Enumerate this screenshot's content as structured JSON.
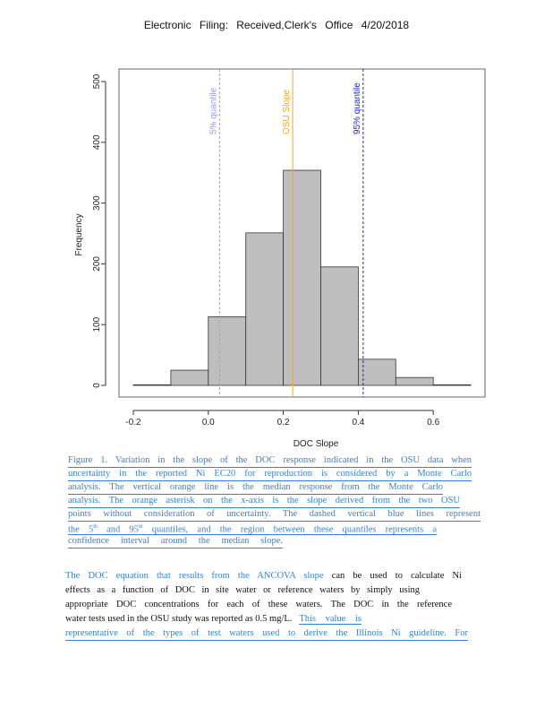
{
  "header": {
    "text": "Electronic Filing: Received,Clerk's Office 4/20/2018"
  },
  "chart_data": {
    "type": "bar",
    "title": "",
    "xlabel": "DOC Slope",
    "ylabel": "Frequency",
    "bins": [
      [
        -0.2,
        -0.1
      ],
      [
        -0.1,
        0.0
      ],
      [
        0.0,
        0.1
      ],
      [
        0.1,
        0.2
      ],
      [
        0.2,
        0.3
      ],
      [
        0.3,
        0.4
      ],
      [
        0.4,
        0.5
      ],
      [
        0.5,
        0.6
      ],
      [
        0.6,
        0.7
      ]
    ],
    "values": [
      1,
      25,
      113,
      251,
      354,
      195,
      43,
      13,
      1
    ],
    "xlim": [
      -0.2,
      0.7
    ],
    "ylim": [
      0,
      500
    ],
    "xticks": [
      "-0.2",
      "0.0",
      "0.2",
      "0.4",
      "0.6"
    ],
    "xtick_values": [
      -0.2,
      0.0,
      0.2,
      0.4,
      0.6
    ],
    "yticks": [
      "0",
      "100",
      "200",
      "300",
      "400",
      "500"
    ],
    "ytick_values": [
      0,
      100,
      200,
      300,
      400,
      500
    ],
    "vlines": [
      {
        "label": "5% quantile",
        "x": 0.03,
        "color": "#9999ff",
        "style": "dashed"
      },
      {
        "label": "OSU Slope",
        "x": 0.225,
        "color": "#f5a623",
        "style": "solid"
      },
      {
        "label": "95% quantile",
        "x": 0.413,
        "color": "#2222dd",
        "style": "dashed"
      }
    ],
    "asterisk": {
      "x": 0.225,
      "y": 0,
      "color": "#f5a623"
    },
    "bar_color": "#bebebe"
  },
  "caption": {
    "lines": [
      "Figure 1. Variation in the slope of the DOC response indicated in the OSU data when",
      "uncertainty in the reported Ni EC20 for reproduction is considered by a Monte Carlo",
      "analysis. The vertical orange line is the median response from the Monte Carlo",
      "analysis. The orange asterisk on the x-axis is the slope derived from the two OSU",
      "points without consideration of uncertainty. The dashed vertical blue lines represent"
    ],
    "line6_a": "the 5",
    "line6_sup1": "th",
    "line6_b": " and 95",
    "line6_sup2": "th",
    "line6_c": " quantiles, and the region between these quantiles represents a",
    "line7": "confidence interval around the median slope."
  },
  "paragraph": {
    "l1_blue": "The DOC equation that results from the ANCOVA slope",
    "l1_black": " can be used to calculate Ni",
    "l2": "effects as a function of DOC in site water or reference waters by simply using",
    "l3": "appropriate DOC concentrations for each of these waters. The DOC in the reference",
    "l4_black": "water tests used in the OSU study was reported as 0.5 mg/L.",
    "l4_blue": "This value is",
    "l5": "representative of the types of test waters used to derive the Illinois Ni guideline. For"
  }
}
